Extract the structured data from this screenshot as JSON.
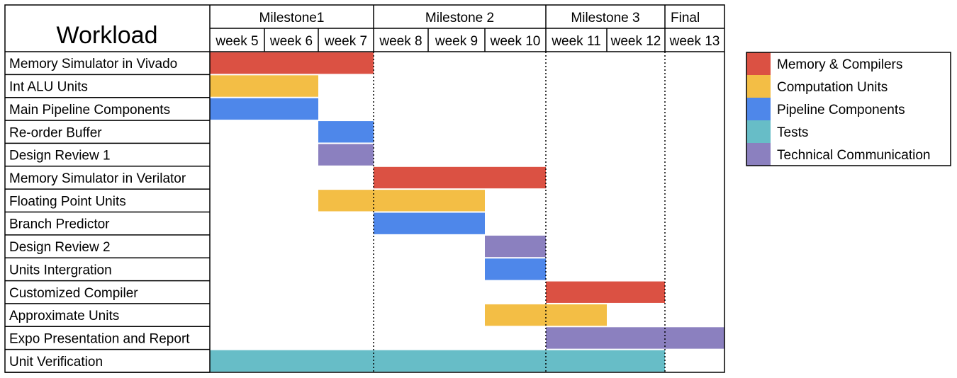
{
  "chart_data": {
    "type": "gantt",
    "title": "Workload",
    "milestones": [
      {
        "label": "Milestone1",
        "start_week": 5,
        "end_week": 7
      },
      {
        "label": "Milestone 2",
        "start_week": 8,
        "end_week": 10
      },
      {
        "label": "Milestone 3",
        "start_week": 11,
        "end_week": 12
      },
      {
        "label": "Final",
        "start_week": 13,
        "end_week": 13
      }
    ],
    "weeks": [
      "week 5",
      "week 6",
      "week 7",
      "week 8",
      "week 9",
      "week 10",
      "week 11",
      "week 12",
      "week 13"
    ],
    "categories": [
      {
        "name": "Memory & Compilers",
        "color": "#db5143"
      },
      {
        "name": "Computation Units",
        "color": "#f3be45"
      },
      {
        "name": "Pipeline Components",
        "color": "#4e87ea"
      },
      {
        "name": "Tests",
        "color": "#67bdc7"
      },
      {
        "name": "Technical Communication",
        "color": "#8b80bf"
      }
    ],
    "tasks": [
      {
        "name": "Memory Simulator in Vivado",
        "category": "Memory & Compilers",
        "start": 5,
        "end": 7
      },
      {
        "name": "Int ALU Units",
        "category": "Computation Units",
        "start": 5,
        "end": 6
      },
      {
        "name": "Main Pipeline Components",
        "category": "Pipeline Components",
        "start": 5,
        "end": 6
      },
      {
        "name": "Re-order Buffer",
        "category": "Pipeline Components",
        "start": 7,
        "end": 7
      },
      {
        "name": "Design Review 1",
        "category": "Technical Communication",
        "start": 7,
        "end": 7
      },
      {
        "name": "Memory Simulator in Verilator",
        "category": "Memory & Compilers",
        "start": 8,
        "end": 10
      },
      {
        "name": "Floating Point Units",
        "category": "Computation Units",
        "start": 7,
        "end": 9
      },
      {
        "name": "Branch Predictor",
        "category": "Pipeline Components",
        "start": 8,
        "end": 9
      },
      {
        "name": "Design Review 2",
        "category": "Technical Communication",
        "start": 10,
        "end": 10
      },
      {
        "name": "Units Intergration",
        "category": "Pipeline Components",
        "start": 10,
        "end": 10
      },
      {
        "name": "Customized Compiler",
        "category": "Memory & Compilers",
        "start": 11,
        "end": 12
      },
      {
        "name": "Approximate Units",
        "category": "Computation Units",
        "start": 10,
        "end": 11
      },
      {
        "name": "Expo Presentation and Report",
        "category": "Technical Communication",
        "start": 11,
        "end": 13
      },
      {
        "name": "Unit Verification",
        "category": "Tests",
        "start": 5,
        "end": 12
      }
    ],
    "legend_position": "right"
  }
}
